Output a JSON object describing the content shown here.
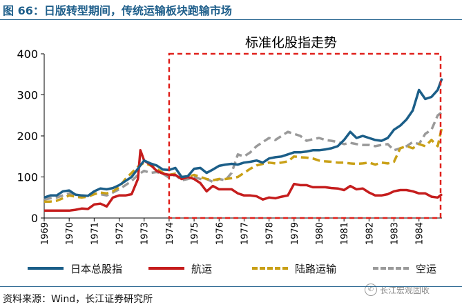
{
  "figure_title": "图 66：日版转型期间，传统运输板块跑输市场",
  "source_text": "资料来源：Wind，长江证券研究所",
  "watermark": "长江宏观固收",
  "colors": {
    "title": "#1f5f8b",
    "nikkei": "#1b5e88",
    "shipping": "#c51d1d",
    "land": "#c9a016",
    "air": "#9a9a9a",
    "box": "#e0201b"
  },
  "chart_data": {
    "type": "line",
    "inner_title": "标准化股指走势",
    "x_tick_labels": [
      "1969",
      "1970",
      "1971",
      "1972",
      "1973",
      "1974",
      "1975",
      "1976",
      "1977",
      "1978",
      "1979",
      "1980",
      "1981",
      "1982",
      "1983",
      "1984"
    ],
    "ylim": [
      0,
      400
    ],
    "y_ticks": [
      0,
      100,
      200,
      300,
      400
    ],
    "xlim": [
      1969.0,
      1984.92
    ],
    "highlight_range": {
      "x": [
        1974.0,
        1984.92
      ],
      "y": [
        0,
        400
      ]
    },
    "series": [
      {
        "name": "日本总股指",
        "key": "nikkei",
        "style": "solid",
        "x": [
          1969.0,
          1969.25,
          1969.5,
          1969.75,
          1970.0,
          1970.25,
          1970.5,
          1970.75,
          1971.0,
          1971.25,
          1971.5,
          1971.75,
          1972.0,
          1972.25,
          1972.5,
          1972.75,
          1973.0,
          1973.25,
          1973.5,
          1973.75,
          1974.0,
          1974.25,
          1974.5,
          1974.75,
          1975.0,
          1975.25,
          1975.5,
          1975.75,
          1976.0,
          1976.25,
          1976.5,
          1976.75,
          1977.0,
          1977.25,
          1977.5,
          1977.75,
          1978.0,
          1978.25,
          1978.5,
          1978.75,
          1979.0,
          1979.25,
          1979.5,
          1979.75,
          1980.0,
          1980.25,
          1980.5,
          1980.75,
          1981.0,
          1981.25,
          1981.5,
          1981.75,
          1982.0,
          1982.25,
          1982.5,
          1982.75,
          1983.0,
          1983.25,
          1983.5,
          1983.75,
          1984.0,
          1984.25,
          1984.5,
          1984.75,
          1984.92
        ],
        "values": [
          50,
          55,
          55,
          65,
          67,
          57,
          55,
          54,
          65,
          72,
          70,
          73,
          80,
          90,
          100,
          120,
          140,
          133,
          128,
          118,
          117,
          122,
          100,
          102,
          120,
          122,
          110,
          118,
          127,
          130,
          132,
          130,
          135,
          137,
          140,
          135,
          145,
          148,
          150,
          155,
          160,
          160,
          162,
          165,
          165,
          167,
          170,
          175,
          190,
          210,
          195,
          200,
          195,
          190,
          188,
          195,
          215,
          225,
          240,
          262,
          312,
          290,
          295,
          312,
          340
        ]
      },
      {
        "name": "航运",
        "key": "shipping",
        "style": "solid",
        "x": [
          1969.0,
          1969.25,
          1969.5,
          1969.75,
          1970.0,
          1970.25,
          1970.5,
          1970.75,
          1971.0,
          1971.25,
          1971.5,
          1971.75,
          1972.0,
          1972.25,
          1972.5,
          1972.75,
          1972.85,
          1973.0,
          1973.25,
          1973.5,
          1973.75,
          1974.0,
          1974.25,
          1974.5,
          1974.75,
          1975.0,
          1975.25,
          1975.5,
          1975.75,
          1976.0,
          1976.25,
          1976.5,
          1976.75,
          1977.0,
          1977.25,
          1977.5,
          1977.75,
          1978.0,
          1978.25,
          1978.5,
          1978.75,
          1979.0,
          1979.25,
          1979.5,
          1979.75,
          1980.0,
          1980.25,
          1980.5,
          1980.75,
          1981.0,
          1981.25,
          1981.5,
          1981.75,
          1982.0,
          1982.25,
          1982.5,
          1982.75,
          1983.0,
          1983.25,
          1983.5,
          1983.75,
          1984.0,
          1984.25,
          1984.5,
          1984.75,
          1984.92
        ],
        "values": [
          18,
          18,
          18,
          18,
          18,
          20,
          23,
          22,
          33,
          35,
          28,
          50,
          55,
          55,
          58,
          95,
          165,
          140,
          130,
          115,
          108,
          105,
          105,
          95,
          100,
          95,
          85,
          65,
          78,
          70,
          70,
          70,
          60,
          55,
          55,
          53,
          45,
          50,
          48,
          52,
          55,
          83,
          80,
          80,
          75,
          75,
          75,
          73,
          72,
          68,
          78,
          70,
          72,
          62,
          55,
          55,
          58,
          65,
          68,
          68,
          65,
          60,
          60,
          52,
          50,
          58
        ]
      },
      {
        "name": "陆路运输",
        "key": "land",
        "style": "dashed",
        "x": [
          1969.0,
          1969.25,
          1969.5,
          1969.75,
          1970.0,
          1970.25,
          1970.5,
          1970.75,
          1971.0,
          1971.25,
          1971.5,
          1971.75,
          1972.0,
          1972.25,
          1972.5,
          1972.75,
          1973.0,
          1973.25,
          1973.5,
          1973.75,
          1974.0,
          1974.25,
          1974.5,
          1974.75,
          1975.0,
          1975.25,
          1975.5,
          1975.75,
          1976.0,
          1976.25,
          1976.5,
          1976.75,
          1977.0,
          1977.25,
          1977.5,
          1977.75,
          1978.0,
          1978.25,
          1978.5,
          1978.75,
          1979.0,
          1979.25,
          1979.5,
          1979.75,
          1980.0,
          1980.25,
          1980.5,
          1980.75,
          1981.0,
          1981.25,
          1981.5,
          1981.75,
          1982.0,
          1982.25,
          1982.5,
          1982.75,
          1983.0,
          1983.25,
          1983.5,
          1983.75,
          1984.0,
          1984.25,
          1984.5,
          1984.75,
          1984.92
        ],
        "values": [
          40,
          40,
          42,
          48,
          55,
          52,
          50,
          52,
          58,
          62,
          60,
          65,
          75,
          95,
          110,
          125,
          135,
          128,
          120,
          110,
          105,
          108,
          100,
          100,
          105,
          100,
          95,
          92,
          95,
          95,
          97,
          100,
          110,
          120,
          128,
          132,
          135,
          133,
          135,
          138,
          150,
          148,
          147,
          145,
          140,
          138,
          137,
          135,
          135,
          133,
          132,
          133,
          135,
          130,
          135,
          133,
          137,
          170,
          175,
          170,
          180,
          175,
          190,
          175,
          222
        ]
      },
      {
        "name": "空运",
        "key": "air",
        "style": "dashed",
        "x": [
          1969.0,
          1969.25,
          1969.5,
          1969.75,
          1970.0,
          1970.25,
          1970.5,
          1970.75,
          1971.0,
          1971.25,
          1971.5,
          1971.75,
          1972.0,
          1972.25,
          1972.5,
          1972.75,
          1973.0,
          1973.25,
          1973.5,
          1973.75,
          1974.0,
          1974.25,
          1974.5,
          1974.75,
          1975.0,
          1975.25,
          1975.5,
          1975.75,
          1976.0,
          1976.25,
          1976.5,
          1976.75,
          1977.0,
          1977.25,
          1977.5,
          1977.75,
          1978.0,
          1978.25,
          1978.5,
          1978.75,
          1979.0,
          1979.25,
          1979.5,
          1979.75,
          1980.0,
          1980.25,
          1980.5,
          1980.75,
          1981.0,
          1981.25,
          1981.5,
          1981.75,
          1982.0,
          1982.25,
          1982.5,
          1982.75,
          1983.0,
          1983.25,
          1983.5,
          1983.75,
          1984.0,
          1984.25,
          1984.5,
          1984.75,
          1984.92
        ],
        "values": [
          45,
          48,
          50,
          55,
          60,
          55,
          52,
          55,
          60,
          58,
          55,
          62,
          70,
          80,
          90,
          105,
          115,
          110,
          112,
          108,
          98,
          105,
          92,
          95,
          100,
          95,
          95,
          88,
          95,
          92,
          110,
          155,
          150,
          160,
          175,
          185,
          195,
          190,
          200,
          210,
          205,
          200,
          188,
          192,
          195,
          190,
          188,
          185,
          180,
          183,
          180,
          178,
          178,
          175,
          178,
          180,
          165,
          170,
          175,
          185,
          180,
          205,
          215,
          250,
          258
        ]
      }
    ]
  }
}
